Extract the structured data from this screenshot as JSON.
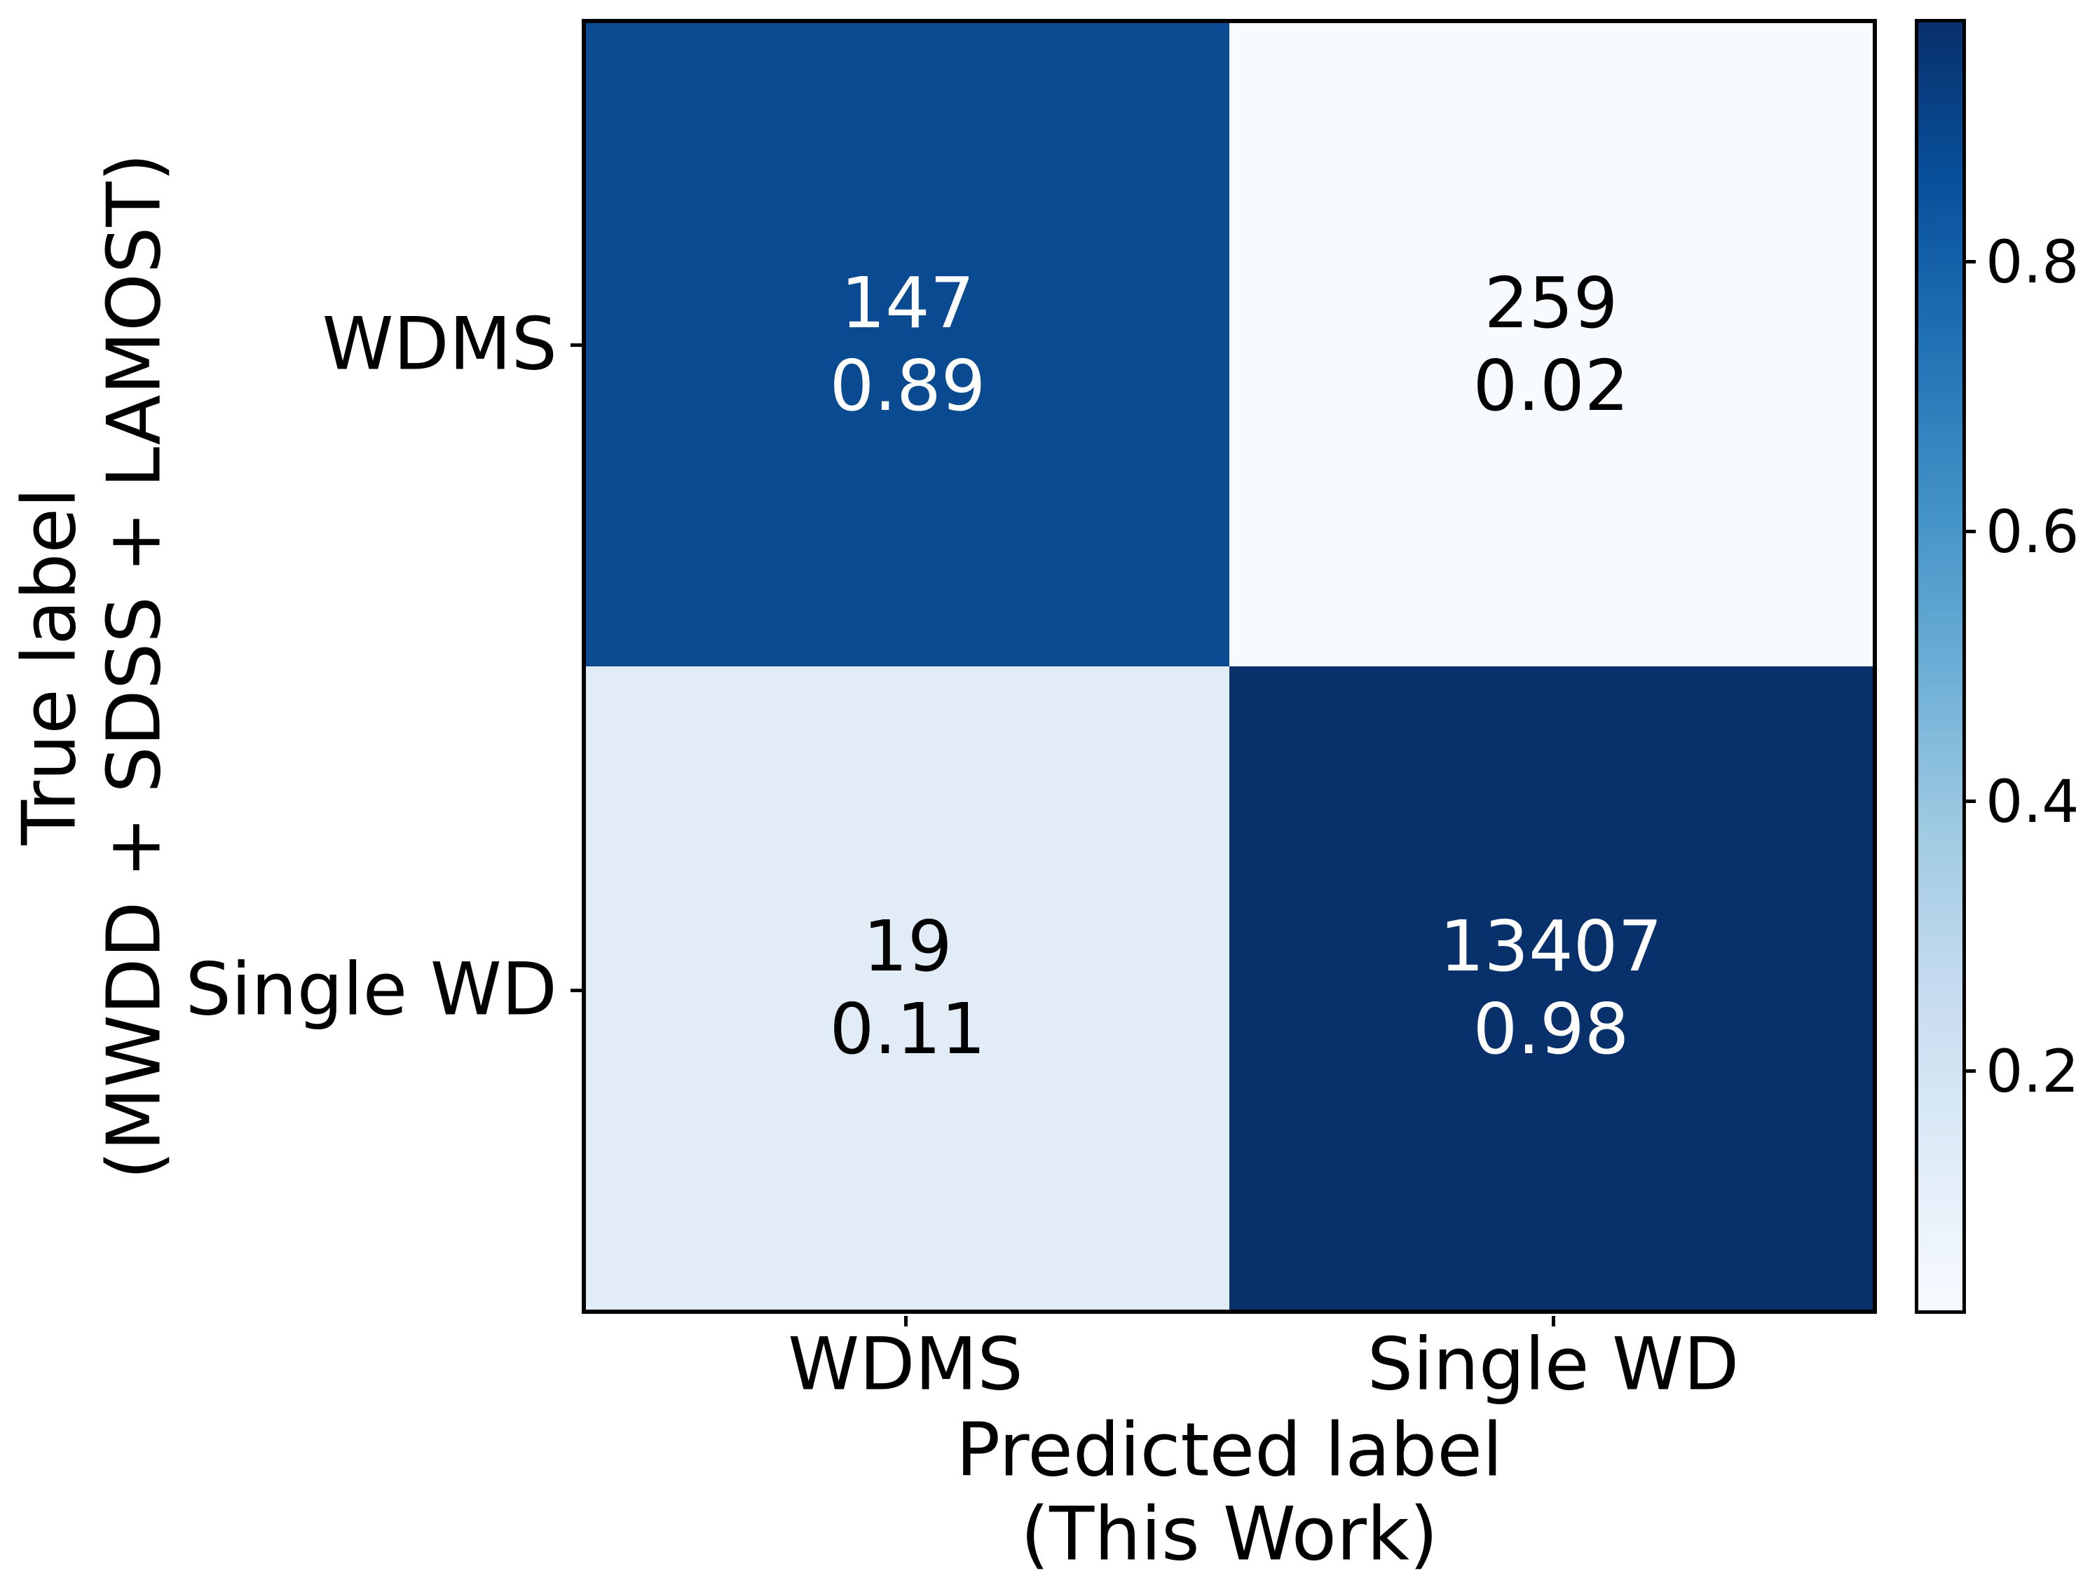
{
  "figure": {
    "background": "#ffffff",
    "text_color": "#000000"
  },
  "chart_data": {
    "type": "heatmap",
    "subtype": "confusion-matrix",
    "xlabel_lines": [
      "Predicted label",
      "(This Work)"
    ],
    "ylabel_lines": [
      "True label",
      "(MWDD + SDSS + LAMOST)"
    ],
    "x_categories": [
      "WDMS",
      "Single WD"
    ],
    "y_categories": [
      "WDMS",
      "Single WD"
    ],
    "cells": [
      {
        "true_label": "WDMS",
        "predicted_label": "WDMS",
        "count": "147",
        "fraction": "0.89",
        "bg": "#094a91",
        "text_color": "#ffffff"
      },
      {
        "true_label": "WDMS",
        "predicted_label": "Single WD",
        "count": "259",
        "fraction": "0.02",
        "bg": "#f7fbff",
        "text_color": "#000000"
      },
      {
        "true_label": "Single WD",
        "predicted_label": "WDMS",
        "count": "19",
        "fraction": "0.11",
        "bg": "#e2ecf6",
        "text_color": "#000000"
      },
      {
        "true_label": "Single WD",
        "predicted_label": "Single WD",
        "count": "13407",
        "fraction": "0.98",
        "bg": "#08306b",
        "text_color": "#ffffff"
      }
    ],
    "colorbar": {
      "colormap": "Blues",
      "vmin": 0.02,
      "vmax": 0.98,
      "tick_labels": [
        "0.8",
        "0.6",
        "0.4",
        "0.2"
      ],
      "gradient_stops_bottom_to_top": [
        "#f7fbff",
        "#deebf7",
        "#c6dbef",
        "#9ecae1",
        "#6baed6",
        "#4292c6",
        "#2171b5",
        "#08519c",
        "#08306b"
      ]
    },
    "grid": false,
    "legend": false,
    "title": ""
  }
}
